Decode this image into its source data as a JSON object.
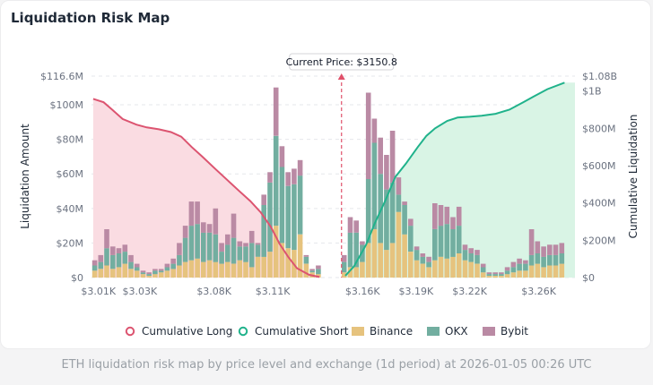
{
  "title": "Liquidation Risk Map",
  "caption": "ETH liquidation risk map by price level and exchange (1d period) at 2026-01-05 00:26 UTC",
  "colors": {
    "binance": "#e6c37e",
    "okx": "#72aea0",
    "bybit": "#ba8aa4",
    "long": "#dc5470",
    "short": "#20b28b",
    "longFill": "#fadce2",
    "shortFill": "#d9f4e5",
    "marker": "#e0506a"
  },
  "chart_data": {
    "type": "bar",
    "current_price_label": "Current Price: $3150.8",
    "current_price": 3150.8,
    "ylabel_left": "Liquidation Amount",
    "ylabel_right": "Cumulative Liquidation",
    "left_ticks": [
      "$0",
      "$20M",
      "$40M",
      "$60M",
      "$80M",
      "$100M",
      "$116.6M"
    ],
    "left_tick_values": [
      0,
      20,
      40,
      60,
      80,
      100,
      116.6
    ],
    "right_ticks": [
      "$0",
      "$200M",
      "$400M",
      "$600M",
      "$800M",
      "$1B",
      "$1.08B"
    ],
    "right_tick_values": [
      0,
      200,
      400,
      600,
      800,
      1000,
      1080
    ],
    "x_ticks": [
      "$3.01K",
      "$3.03K",
      "$3.08K",
      "$3.11K",
      "$3.16K",
      "$3.19K",
      "$3.22K",
      "$3.26K"
    ],
    "x_tick_values": [
      3010,
      3034,
      3077,
      3111,
      3163,
      3194,
      3225,
      3265
    ],
    "legend": [
      "Cumulative Long",
      "Cumulative Short",
      "Binance",
      "OKX",
      "Bybit"
    ],
    "legend_placement": "bottom",
    "x_range": [
      3006,
      3286
    ],
    "bar_width_data": 3.2,
    "bars": [
      {
        "p": 3008,
        "binance": 4,
        "okx": 3,
        "bybit": 3
      },
      {
        "p": 3011.5,
        "binance": 5,
        "okx": 4,
        "bybit": 4
      },
      {
        "p": 3015,
        "binance": 7,
        "okx": 10,
        "bybit": 11
      },
      {
        "p": 3018.5,
        "binance": 5,
        "okx": 8,
        "bybit": 5
      },
      {
        "p": 3022,
        "binance": 6,
        "okx": 8,
        "bybit": 3
      },
      {
        "p": 3025.5,
        "binance": 8,
        "okx": 7,
        "bybit": 4
      },
      {
        "p": 3029,
        "binance": 5,
        "okx": 4,
        "bybit": 4
      },
      {
        "p": 3032.5,
        "binance": 4,
        "okx": 2,
        "bybit": 2
      },
      {
        "p": 3036,
        "binance": 2,
        "okx": 1,
        "bybit": 1
      },
      {
        "p": 3039.5,
        "binance": 1,
        "okx": 1,
        "bybit": 1
      },
      {
        "p": 3043,
        "binance": 2,
        "okx": 2,
        "bybit": 1
      },
      {
        "p": 3046.5,
        "binance": 3,
        "okx": 1,
        "bybit": 1
      },
      {
        "p": 3050,
        "binance": 4,
        "okx": 2,
        "bybit": 2
      },
      {
        "p": 3053.5,
        "binance": 5,
        "okx": 3,
        "bybit": 3
      },
      {
        "p": 3057,
        "binance": 7,
        "okx": 6,
        "bybit": 7
      },
      {
        "p": 3060.5,
        "binance": 9,
        "okx": 14,
        "bybit": 7
      },
      {
        "p": 3064,
        "binance": 10,
        "okx": 20,
        "bybit": 14
      },
      {
        "p": 3067.5,
        "binance": 11,
        "okx": 20,
        "bybit": 13
      },
      {
        "p": 3071,
        "binance": 9,
        "okx": 17,
        "bybit": 6
      },
      {
        "p": 3074.5,
        "binance": 10,
        "okx": 16,
        "bybit": 5
      },
      {
        "p": 3078,
        "binance": 9,
        "okx": 16,
        "bybit": 15
      },
      {
        "p": 3081.5,
        "binance": 8,
        "okx": 7,
        "bybit": 5
      },
      {
        "p": 3085,
        "binance": 9,
        "okx": 10,
        "bybit": 6
      },
      {
        "p": 3088.5,
        "binance": 8,
        "okx": 15,
        "bybit": 14
      },
      {
        "p": 3092,
        "binance": 10,
        "okx": 8,
        "bybit": 3
      },
      {
        "p": 3095.5,
        "binance": 9,
        "okx": 9,
        "bybit": 2
      },
      {
        "p": 3099,
        "binance": 6,
        "okx": 14,
        "bybit": 7
      },
      {
        "p": 3102.5,
        "binance": 12,
        "okx": 7,
        "bybit": 1
      },
      {
        "p": 3106,
        "binance": 12,
        "okx": 30,
        "bybit": 6
      },
      {
        "p": 3109.5,
        "binance": 15,
        "okx": 40,
        "bybit": 6
      },
      {
        "p": 3113,
        "binance": 30,
        "okx": 52,
        "bybit": 28
      },
      {
        "p": 3116.5,
        "binance": 20,
        "okx": 44,
        "bybit": 12
      },
      {
        "p": 3120,
        "binance": 17,
        "okx": 36,
        "bybit": 8
      },
      {
        "p": 3123.5,
        "binance": 16,
        "okx": 38,
        "bybit": 9
      },
      {
        "p": 3127,
        "binance": 25,
        "okx": 34,
        "bybit": 9
      },
      {
        "p": 3130.5,
        "binance": 8,
        "okx": 4,
        "bybit": 1
      },
      {
        "p": 3134,
        "binance": 3,
        "okx": 1,
        "bybit": 1
      },
      {
        "p": 3137.5,
        "binance": 2,
        "okx": 3,
        "bybit": 2
      },
      {
        "p": 3152.5,
        "binance": 3,
        "okx": 6,
        "bybit": 4
      },
      {
        "p": 3156,
        "binance": 6,
        "okx": 20,
        "bybit": 9
      },
      {
        "p": 3159.5,
        "binance": 6,
        "okx": 20,
        "bybit": 7
      },
      {
        "p": 3163,
        "binance": 9,
        "okx": 10,
        "bybit": 2
      },
      {
        "p": 3166.5,
        "binance": 20,
        "okx": 37,
        "bybit": 50
      },
      {
        "p": 3170,
        "binance": 28,
        "okx": 50,
        "bybit": 14
      },
      {
        "p": 3173.5,
        "binance": 20,
        "okx": 40,
        "bybit": 21
      },
      {
        "p": 3177,
        "binance": 16,
        "okx": 35,
        "bybit": 20
      },
      {
        "p": 3180.5,
        "binance": 20,
        "okx": 35,
        "bybit": 30
      },
      {
        "p": 3184,
        "binance": 38,
        "okx": 10,
        "bybit": 10
      },
      {
        "p": 3187.5,
        "binance": 25,
        "okx": 17,
        "bybit": 2
      },
      {
        "p": 3191,
        "binance": 15,
        "okx": 15,
        "bybit": 4
      },
      {
        "p": 3194.5,
        "binance": 10,
        "okx": 6,
        "bybit": 2
      },
      {
        "p": 3198,
        "binance": 8,
        "okx": 4,
        "bybit": 2
      },
      {
        "p": 3201.5,
        "binance": 6,
        "okx": 3,
        "bybit": 3
      },
      {
        "p": 3205,
        "binance": 10,
        "okx": 18,
        "bybit": 15
      },
      {
        "p": 3208.5,
        "binance": 12,
        "okx": 18,
        "bybit": 12
      },
      {
        "p": 3212,
        "binance": 11,
        "okx": 20,
        "bybit": 10
      },
      {
        "p": 3215.5,
        "binance": 12,
        "okx": 16,
        "bybit": 7
      },
      {
        "p": 3219,
        "binance": 14,
        "okx": 16,
        "bybit": 11
      },
      {
        "p": 3222.5,
        "binance": 10,
        "okx": 6,
        "bybit": 3
      },
      {
        "p": 3226,
        "binance": 9,
        "okx": 5,
        "bybit": 3
      },
      {
        "p": 3229.5,
        "binance": 8,
        "okx": 5,
        "bybit": 3
      },
      {
        "p": 3233,
        "binance": 3,
        "okx": 3,
        "bybit": 2
      },
      {
        "p": 3236.5,
        "binance": 1,
        "okx": 1,
        "bybit": 1
      },
      {
        "p": 3240,
        "binance": 1,
        "okx": 1,
        "bybit": 1
      },
      {
        "p": 3243.5,
        "binance": 1,
        "okx": 1,
        "bybit": 1
      },
      {
        "p": 3247,
        "binance": 2,
        "okx": 2,
        "bybit": 2
      },
      {
        "p": 3250.5,
        "binance": 3,
        "okx": 3,
        "bybit": 3
      },
      {
        "p": 3254,
        "binance": 4,
        "okx": 4,
        "bybit": 3
      },
      {
        "p": 3257.5,
        "binance": 4,
        "okx": 4,
        "bybit": 2
      },
      {
        "p": 3261,
        "binance": 7,
        "okx": 6,
        "bybit": 15
      },
      {
        "p": 3264.5,
        "binance": 8,
        "okx": 6,
        "bybit": 7
      },
      {
        "p": 3268,
        "binance": 6,
        "okx": 6,
        "bybit": 6
      },
      {
        "p": 3271.5,
        "binance": 7,
        "okx": 6,
        "bybit": 6
      },
      {
        "p": 3275,
        "binance": 7,
        "okx": 6,
        "bybit": 6
      },
      {
        "p": 3278.5,
        "binance": 8,
        "okx": 6,
        "bybit": 6
      }
    ],
    "cumulative_long": {
      "x": [
        3007,
        3013,
        3018,
        3024,
        3032,
        3038,
        3045,
        3052,
        3058,
        3064,
        3070,
        3078,
        3085,
        3092,
        3098,
        3104,
        3110,
        3115,
        3120,
        3125,
        3132,
        3138
      ],
      "y": [
        958,
        940,
        900,
        850,
        820,
        805,
        795,
        780,
        755,
        700,
        650,
        580,
        520,
        460,
        410,
        350,
        270,
        180,
        110,
        50,
        15,
        3
      ]
    },
    "cumulative_short": {
      "x": [
        3153,
        3158,
        3165,
        3170,
        3176,
        3182,
        3188,
        3195,
        3200,
        3205,
        3212,
        3218,
        3225,
        3232,
        3240,
        3248,
        3256,
        3262,
        3270,
        3280
      ],
      "y": [
        10,
        60,
        175,
        290,
        410,
        540,
        610,
        700,
        760,
        800,
        840,
        858,
        862,
        868,
        878,
        900,
        940,
        970,
        1010,
        1045
      ]
    }
  }
}
